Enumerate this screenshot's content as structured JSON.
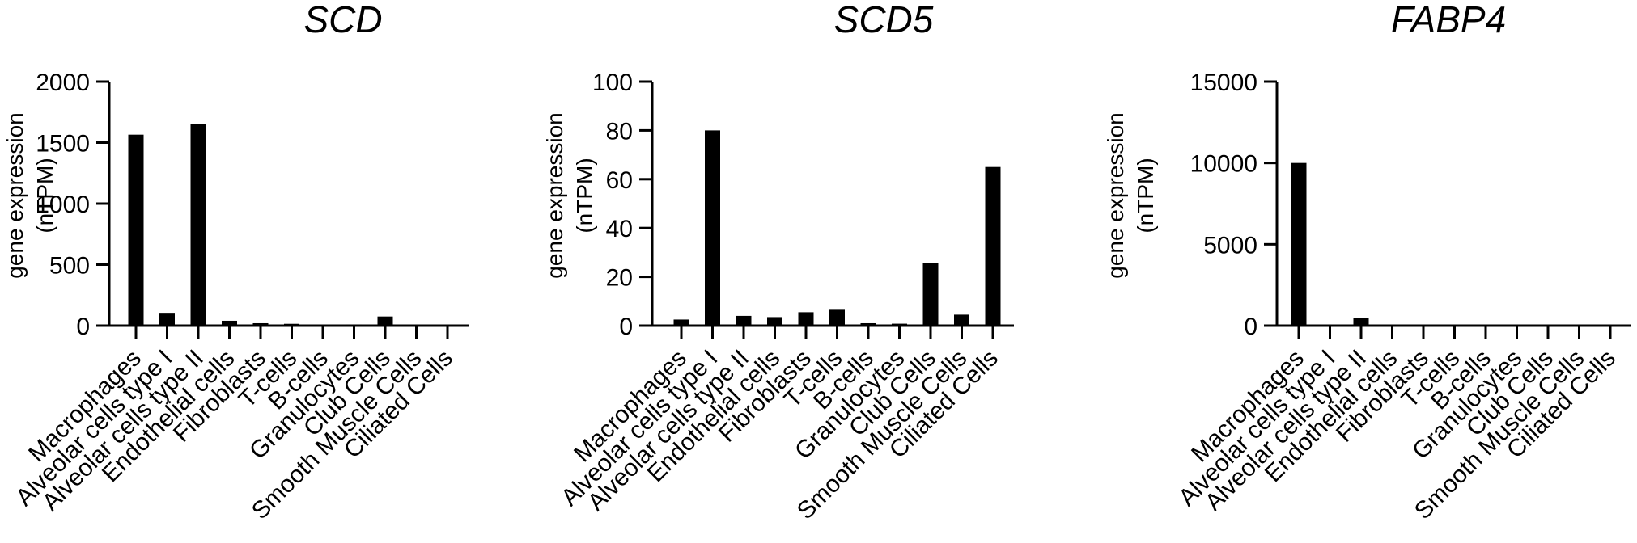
{
  "figure": {
    "panels": [
      {
        "title": "SCD",
        "ylabel_line1": "gene expression",
        "ylabel_line2": "(nTPM)"
      },
      {
        "title": "SCD5",
        "ylabel_line1": "gene expression",
        "ylabel_line2": "(nTPM)"
      },
      {
        "title": "FABP4",
        "ylabel_line1": "gene expression",
        "ylabel_line2": "(nTPM)"
      }
    ]
  },
  "chart_data": [
    {
      "type": "bar",
      "title": "SCD",
      "ylabel": "gene expression (nTPM)",
      "ylim": [
        0,
        2000
      ],
      "yticks": [
        0,
        500,
        1000,
        1500,
        2000
      ],
      "categories": [
        "Macrophages",
        "Alveolar cells type I",
        "Alveolar cells type II",
        "Endothelial cells",
        "Fibroblasts",
        "T-cells",
        "B-cells",
        "Granulocytes",
        "Club Cells",
        "Smooth Muscle Cells",
        "Ciliated Cells"
      ],
      "values": [
        1565,
        105,
        1650,
        40,
        20,
        15,
        8,
        10,
        75,
        6,
        5
      ],
      "bar_color": "#000000"
    },
    {
      "type": "bar",
      "title": "SCD5",
      "ylabel": "gene expression (nTPM)",
      "ylim": [
        0,
        100
      ],
      "yticks": [
        0,
        20,
        40,
        60,
        80,
        100
      ],
      "categories": [
        "Macrophages",
        "Alveolar cells type I",
        "Alveolar cells type II",
        "Endothelial cells",
        "Fibroblasts",
        "T-cells",
        "B-cells",
        "Granulocytes",
        "Club Cells",
        "Smooth Muscle Cells",
        "Ciliated Cells"
      ],
      "values": [
        2.5,
        80,
        4,
        3.5,
        5.5,
        6.5,
        1,
        0.8,
        25.5,
        4.5,
        65
      ],
      "bar_color": "#000000"
    },
    {
      "type": "bar",
      "title": "FABP4",
      "ylabel": "gene expression (nTPM)",
      "ylim": [
        0,
        15000
      ],
      "yticks": [
        0,
        5000,
        10000,
        15000
      ],
      "categories": [
        "Macrophages",
        "Alveolar cells type I",
        "Alveolar cells type II",
        "Endothelial cells",
        "Fibroblasts",
        "T-cells",
        "B-cells",
        "Granulocytes",
        "Club Cells",
        "Smooth Muscle Cells",
        "Ciliated Cells"
      ],
      "values": [
        10000,
        15,
        450,
        60,
        40,
        30,
        25,
        35,
        60,
        45,
        15
      ],
      "bar_color": "#000000"
    }
  ]
}
